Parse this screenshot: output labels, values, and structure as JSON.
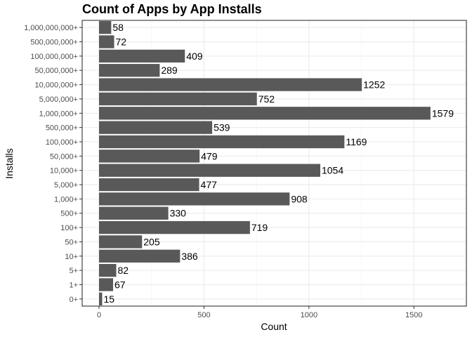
{
  "colors": {
    "bar": "#595959",
    "background": "#ffffff"
  },
  "chart_data": {
    "type": "bar",
    "orientation": "horizontal",
    "title": "Count of Apps by App Installs",
    "xlabel": "Count",
    "ylabel": "Installs",
    "xlim": [
      0,
      1730
    ],
    "x_ticks": [
      0,
      500,
      1000,
      1500
    ],
    "grid": true,
    "categories": [
      "0+",
      "1+",
      "5+",
      "10+",
      "50+",
      "100+",
      "500+",
      "1,000+",
      "5,000+",
      "10,000+",
      "50,000+",
      "100,000+",
      "500,000+",
      "1,000,000+",
      "5,000,000+",
      "10,000,000+",
      "50,000,000+",
      "100,000,000+",
      "500,000,000+",
      "1,000,000,000+"
    ],
    "values": [
      15,
      67,
      82,
      386,
      205,
      719,
      330,
      908,
      477,
      1054,
      479,
      1169,
      539,
      1579,
      752,
      1252,
      289,
      409,
      72,
      58
    ]
  }
}
